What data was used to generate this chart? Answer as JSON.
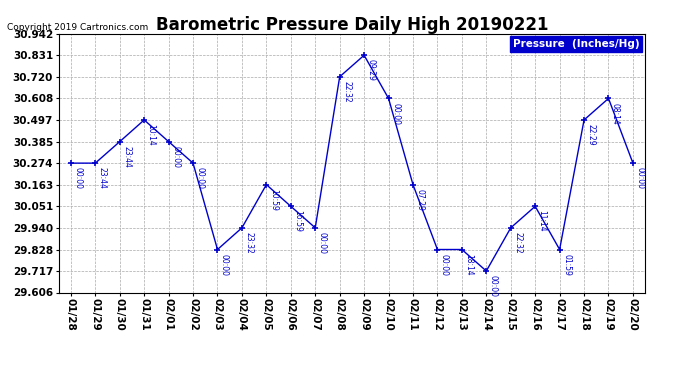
{
  "title": "Barometric Pressure Daily High 20190221",
  "copyright": "Copyright 2019 Cartronics.com",
  "legend_label": "Pressure  (Inches/Hg)",
  "ylim": [
    29.606,
    30.942
  ],
  "yticks": [
    29.606,
    29.717,
    29.828,
    29.94,
    30.051,
    30.163,
    30.274,
    30.385,
    30.497,
    30.608,
    30.72,
    30.831,
    30.942
  ],
  "dates": [
    "01/28",
    "01/29",
    "01/30",
    "01/31",
    "02/01",
    "02/02",
    "02/03",
    "02/04",
    "02/05",
    "02/06",
    "02/07",
    "02/08",
    "02/09",
    "02/10",
    "02/11",
    "02/12",
    "02/13",
    "02/14",
    "02/15",
    "02/16",
    "02/17",
    "02/18",
    "02/19",
    "02/20"
  ],
  "values": [
    30.274,
    30.274,
    30.385,
    30.497,
    30.385,
    30.274,
    29.828,
    29.94,
    30.163,
    30.051,
    29.94,
    30.72,
    30.831,
    30.608,
    30.163,
    29.828,
    29.828,
    29.717,
    29.94,
    30.051,
    29.828,
    30.497,
    30.608,
    30.274
  ],
  "time_labels": [
    "00:00",
    "23:44",
    "23:44",
    "10:14",
    "00:00",
    "00:00",
    "00:00",
    "23:32",
    "10:59",
    "16:59",
    "00:00",
    "22:32",
    "09:29",
    "00:00",
    "07:29",
    "00:00",
    "18:14",
    "00:00",
    "22:32",
    "11:14",
    "01:59",
    "22:29",
    "08:14",
    "00:00"
  ],
  "line_color": "#0000cc",
  "bg_color": "#ffffff",
  "grid_color": "#aaaaaa",
  "title_fontsize": 12,
  "tick_fontsize": 7.5,
  "label_fontsize": 6.5,
  "legend_facecolor": "#0000cc",
  "legend_textcolor": "#ffffff"
}
